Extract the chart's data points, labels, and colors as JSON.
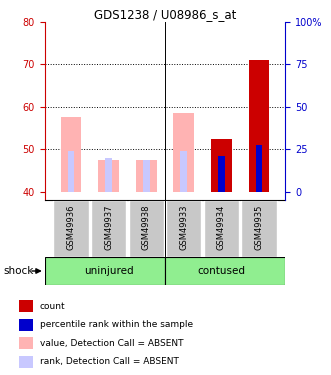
{
  "title": "GDS1238 / U08986_s_at",
  "samples": [
    "GSM49936",
    "GSM49937",
    "GSM49938",
    "GSM49933",
    "GSM49934",
    "GSM49935"
  ],
  "group_labels": [
    "uninjured",
    "contused"
  ],
  "ylim_left": [
    38,
    80
  ],
  "yticks_left": [
    40,
    50,
    60,
    70,
    80
  ],
  "yticks_right": [
    0,
    25,
    50,
    75,
    100
  ],
  "yright_labels": [
    "0",
    "25",
    "50",
    "75",
    "100%"
  ],
  "dotted_lines": [
    50,
    60,
    70
  ],
  "bar_bottom": 40,
  "absent_value_bars": [
    57.5,
    47.5,
    47.5,
    58.5,
    0,
    0
  ],
  "absent_rank_bars": [
    49.5,
    48.0,
    47.5,
    49.5,
    0,
    0
  ],
  "count_bars": [
    0,
    0,
    0,
    0,
    52.5,
    71.0
  ],
  "rank_bars": [
    0,
    0,
    0,
    0,
    48.5,
    51.0
  ],
  "color_absent_value": "#ffb3b3",
  "color_absent_rank": "#c8c8ff",
  "color_count": "#cc0000",
  "color_rank": "#0000cc",
  "color_left_axis": "#cc0000",
  "color_right_axis": "#0000cc",
  "group_box_color": "#90ee90",
  "sample_box_color": "#c8c8c8",
  "legend_items": [
    {
      "label": "count",
      "color": "#cc0000"
    },
    {
      "label": "percentile rank within the sample",
      "color": "#0000cc"
    },
    {
      "label": "value, Detection Call = ABSENT",
      "color": "#ffb3b3"
    },
    {
      "label": "rank, Detection Call = ABSENT",
      "color": "#c8c8ff"
    }
  ]
}
